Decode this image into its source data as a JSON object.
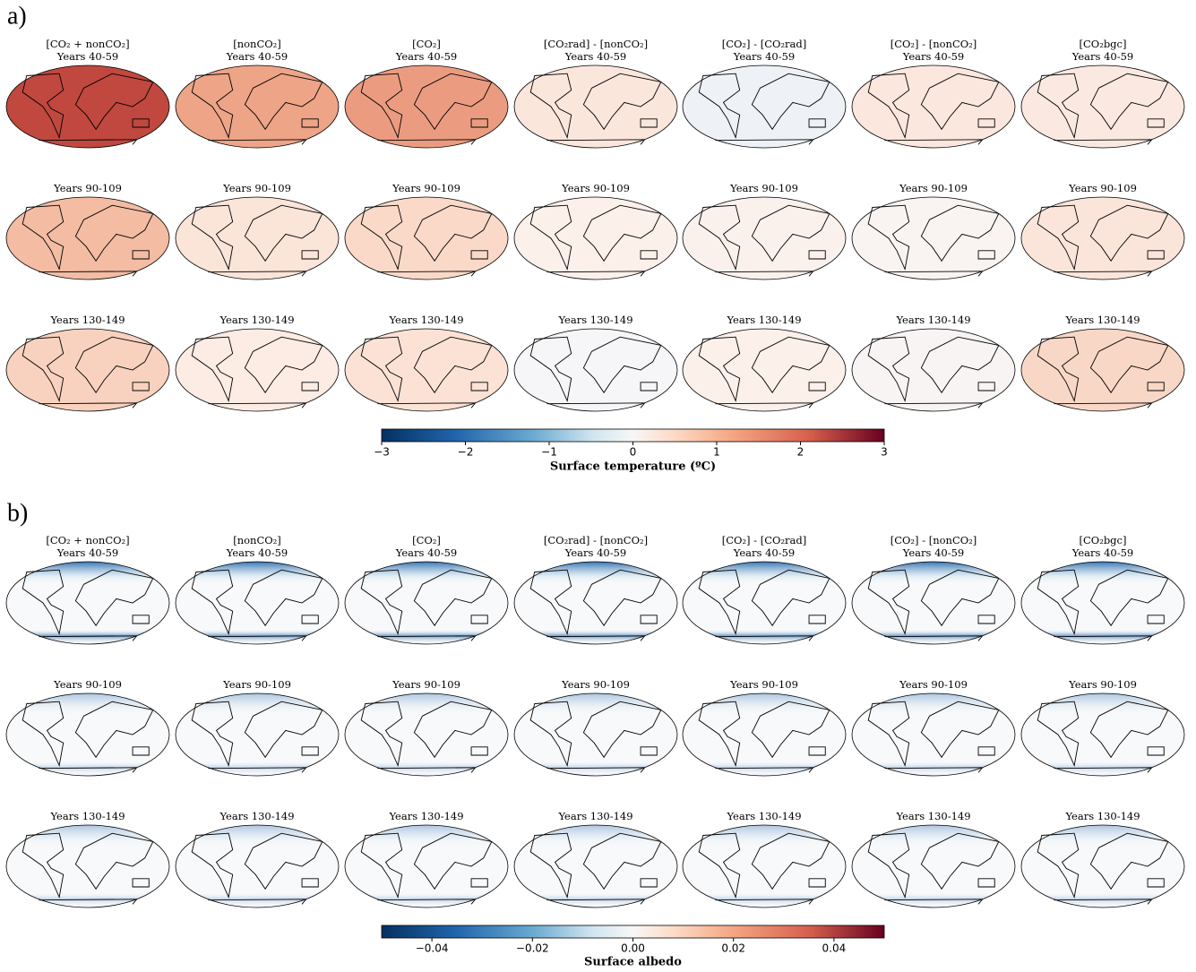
{
  "panels": [
    {
      "label": "a)",
      "columns": [
        "[CO₂ + nonCO₂]",
        "[nonCO₂]",
        "[CO₂]",
        "[CO₂rad] - [nonCO₂]",
        "[CO₂] - [CO₂rad]",
        "[CO₂] - [nonCO₂]",
        "[CO₂bgc]"
      ],
      "periods": [
        "Years 40-59",
        "Years 90-109",
        "Years 130-149"
      ],
      "colorbar": {
        "label": "Surface temperature (ºC)",
        "lim": [
          -3,
          3
        ],
        "ticks": [
          {
            "value": -3,
            "label": "−3"
          },
          {
            "value": -2,
            "label": "−2"
          },
          {
            "value": -1,
            "label": "−1"
          },
          0,
          1,
          2,
          3
        ]
      }
    },
    {
      "label": "b)",
      "columns": [
        "[CO₂ + nonCO₂]",
        "[nonCO₂]",
        "[CO₂]",
        "[CO₂rad] - [nonCO₂]",
        "[CO₂] - [CO₂rad]",
        "[CO₂] - [nonCO₂]",
        "[CO₂bgc]"
      ],
      "periods": [
        "Years 40-59",
        "Years 90-109",
        "Years 130-149"
      ],
      "colorbar": {
        "label": "Surface albedo",
        "lim": [
          -0.05,
          0.05
        ],
        "ticks": [
          {
            "value": -0.04,
            "label": "−0.04"
          },
          {
            "value": -0.02,
            "label": "−0.02"
          },
          {
            "value": 0,
            "label": "0.00"
          },
          0.02,
          0.04
        ]
      }
    }
  ]
}
